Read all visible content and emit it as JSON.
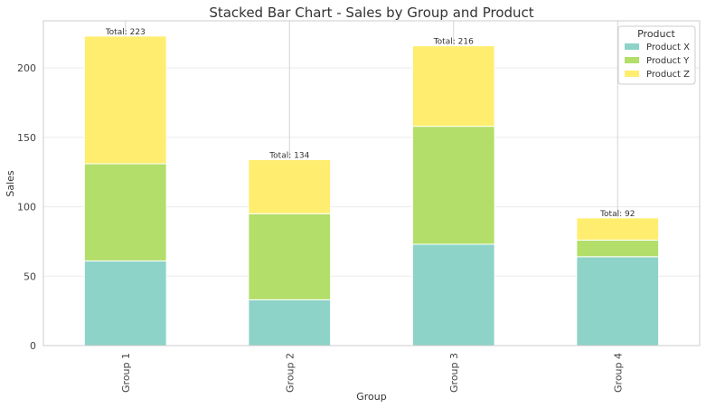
{
  "chart_data": {
    "type": "bar",
    "stacked": true,
    "title": "Stacked Bar Chart - Sales by Group and Product",
    "xlabel": "Group",
    "ylabel": "Sales",
    "categories": [
      "Group 1",
      "Group 2",
      "Group 3",
      "Group 4"
    ],
    "series": [
      {
        "name": "Product X",
        "values": [
          61,
          33,
          73,
          64
        ],
        "color": "#8dd3c7"
      },
      {
        "name": "Product Y",
        "values": [
          70,
          62,
          85,
          12
        ],
        "color": "#b3de69"
      },
      {
        "name": "Product Z",
        "values": [
          92,
          39,
          58,
          16
        ],
        "color": "#ffed6f"
      }
    ],
    "totals": [
      223,
      134,
      216,
      92
    ],
    "total_label_prefix": "Total: ",
    "ylim": [
      0,
      234
    ],
    "yticks": [
      0,
      50,
      100,
      150,
      200
    ],
    "legend": {
      "title": "Product",
      "position": "top-right"
    },
    "grid": true
  }
}
